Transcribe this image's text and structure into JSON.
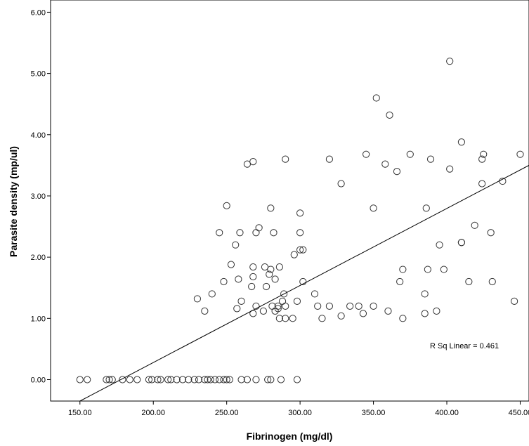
{
  "chart_data": {
    "type": "scatter",
    "xlabel": "Fibrinogen (mg/dl)",
    "ylabel": "Parasite density (mp/ul)",
    "xlim": [
      130,
      456
    ],
    "ylim": [
      -0.35,
      6.2
    ],
    "x_ticks": [
      150,
      200,
      250,
      300,
      350,
      400,
      450
    ],
    "x_tick_labels": [
      "150.00",
      "200.00",
      "250.00",
      "300.00",
      "350.00",
      "400.00",
      "450.00"
    ],
    "y_ticks": [
      0,
      1,
      2,
      3,
      4,
      5,
      6
    ],
    "y_tick_labels": [
      "0.00",
      "1.00",
      "2.00",
      "3.00",
      "4.00",
      "5.00",
      "6.00"
    ],
    "grid": false,
    "annotation": "R Sq Linear = 0.461",
    "fit_line": {
      "x": [
        150,
        456
      ],
      "y": [
        -0.35,
        3.5
      ]
    },
    "points": [
      [
        150,
        0
      ],
      [
        155,
        0
      ],
      [
        168,
        0
      ],
      [
        170,
        0
      ],
      [
        172,
        0
      ],
      [
        179,
        0
      ],
      [
        184,
        0
      ],
      [
        189,
        0
      ],
      [
        197,
        0
      ],
      [
        199,
        0
      ],
      [
        203,
        0
      ],
      [
        205,
        0
      ],
      [
        210,
        0
      ],
      [
        212,
        0
      ],
      [
        216,
        0
      ],
      [
        220,
        0
      ],
      [
        224,
        0
      ],
      [
        228,
        0
      ],
      [
        231,
        0
      ],
      [
        235,
        0
      ],
      [
        237,
        0
      ],
      [
        239,
        0
      ],
      [
        242,
        0
      ],
      [
        245,
        0
      ],
      [
        248,
        0
      ],
      [
        250,
        0
      ],
      [
        252,
        0
      ],
      [
        260,
        0
      ],
      [
        264,
        0
      ],
      [
        270,
        0
      ],
      [
        278,
        0
      ],
      [
        280,
        0
      ],
      [
        287,
        0
      ],
      [
        298,
        0
      ],
      [
        230,
        1.32
      ],
      [
        235,
        1.12
      ],
      [
        240,
        1.4
      ],
      [
        245,
        2.4
      ],
      [
        248,
        1.6
      ],
      [
        250,
        2.84
      ],
      [
        253,
        1.88
      ],
      [
        256,
        2.2
      ],
      [
        257,
        1.16
      ],
      [
        258,
        1.64
      ],
      [
        259,
        2.4
      ],
      [
        260,
        1.28
      ],
      [
        264,
        3.52
      ],
      [
        267,
        1.52
      ],
      [
        268,
        1.08
      ],
      [
        268,
        1.68
      ],
      [
        268,
        1.84
      ],
      [
        268,
        3.56
      ],
      [
        270,
        2.4
      ],
      [
        270,
        1.2
      ],
      [
        272,
        2.48
      ],
      [
        275,
        1.12
      ],
      [
        276,
        1.84
      ],
      [
        277,
        1.52
      ],
      [
        279,
        1.72
      ],
      [
        280,
        1.8
      ],
      [
        280,
        2.8
      ],
      [
        281,
        1.2
      ],
      [
        282,
        2.4
      ],
      [
        283,
        1.64
      ],
      [
        283,
        1.12
      ],
      [
        285,
        1.2
      ],
      [
        285,
        1.16
      ],
      [
        286,
        1.84
      ],
      [
        286,
        1.0
      ],
      [
        288,
        1.28
      ],
      [
        289,
        1.4
      ],
      [
        290,
        1.2
      ],
      [
        290,
        1.0
      ],
      [
        290,
        3.6
      ],
      [
        295,
        1.0
      ],
      [
        296,
        2.04
      ],
      [
        298,
        1.28
      ],
      [
        300,
        2.72
      ],
      [
        300,
        2.4
      ],
      [
        300,
        2.12
      ],
      [
        302,
        2.12
      ],
      [
        302,
        1.6
      ],
      [
        310,
        1.4
      ],
      [
        312,
        1.2
      ],
      [
        315,
        1.0
      ],
      [
        320,
        3.6
      ],
      [
        320,
        1.2
      ],
      [
        328,
        3.2
      ],
      [
        328,
        1.04
      ],
      [
        334,
        1.2
      ],
      [
        340,
        1.2
      ],
      [
        343,
        1.08
      ],
      [
        345,
        3.68
      ],
      [
        350,
        2.8
      ],
      [
        350,
        1.2
      ],
      [
        352,
        4.6
      ],
      [
        358,
        3.52
      ],
      [
        360,
        1.12
      ],
      [
        361,
        4.32
      ],
      [
        366,
        3.4
      ],
      [
        368,
        1.6
      ],
      [
        370,
        1.8
      ],
      [
        370,
        1.0
      ],
      [
        375,
        3.68
      ],
      [
        385,
        1.08
      ],
      [
        385,
        1.4
      ],
      [
        386,
        2.8
      ],
      [
        387,
        1.8
      ],
      [
        389,
        3.6
      ],
      [
        393,
        1.12
      ],
      [
        395,
        2.2
      ],
      [
        398,
        1.8
      ],
      [
        402,
        5.2
      ],
      [
        402,
        3.44
      ],
      [
        410,
        3.88
      ],
      [
        410,
        2.24
      ],
      [
        410,
        2.24
      ],
      [
        415,
        1.6
      ],
      [
        419,
        2.52
      ],
      [
        424,
        3.6
      ],
      [
        424,
        3.2
      ],
      [
        425,
        3.68
      ],
      [
        430,
        2.4
      ],
      [
        431,
        1.6
      ],
      [
        438,
        3.24
      ],
      [
        446,
        1.28
      ],
      [
        450,
        3.68
      ]
    ]
  }
}
